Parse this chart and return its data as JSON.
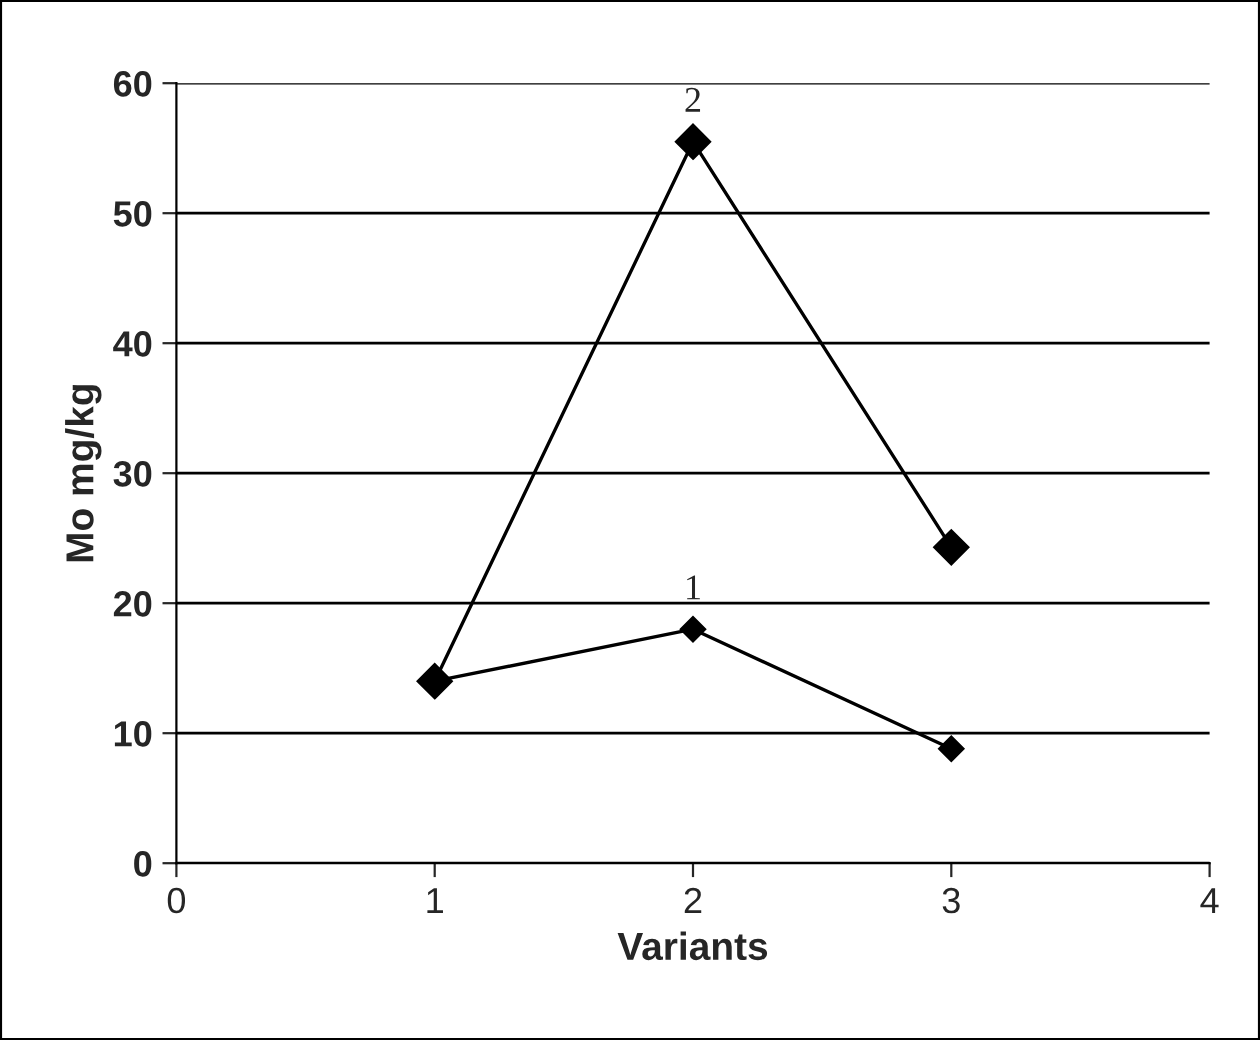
{
  "chart_data": {
    "type": "line",
    "xlabel": "Variants",
    "ylabel": "Mo mg/kg",
    "x": [
      1,
      2,
      3
    ],
    "series": [
      {
        "name": "2",
        "color": "#000000",
        "values": [
          14,
          55.5,
          24.3
        ]
      },
      {
        "name": "1",
        "color": "#000000",
        "values": [
          14,
          18,
          8.8
        ]
      }
    ],
    "xlim": [
      0,
      4
    ],
    "xticks": [
      0,
      1,
      2,
      3,
      4
    ],
    "ylim": [
      0,
      60
    ],
    "yticks": [
      0,
      10,
      20,
      30,
      40,
      50,
      60
    ],
    "grid": "y",
    "legend": false,
    "marker": "diamond",
    "line_style": "solid"
  }
}
